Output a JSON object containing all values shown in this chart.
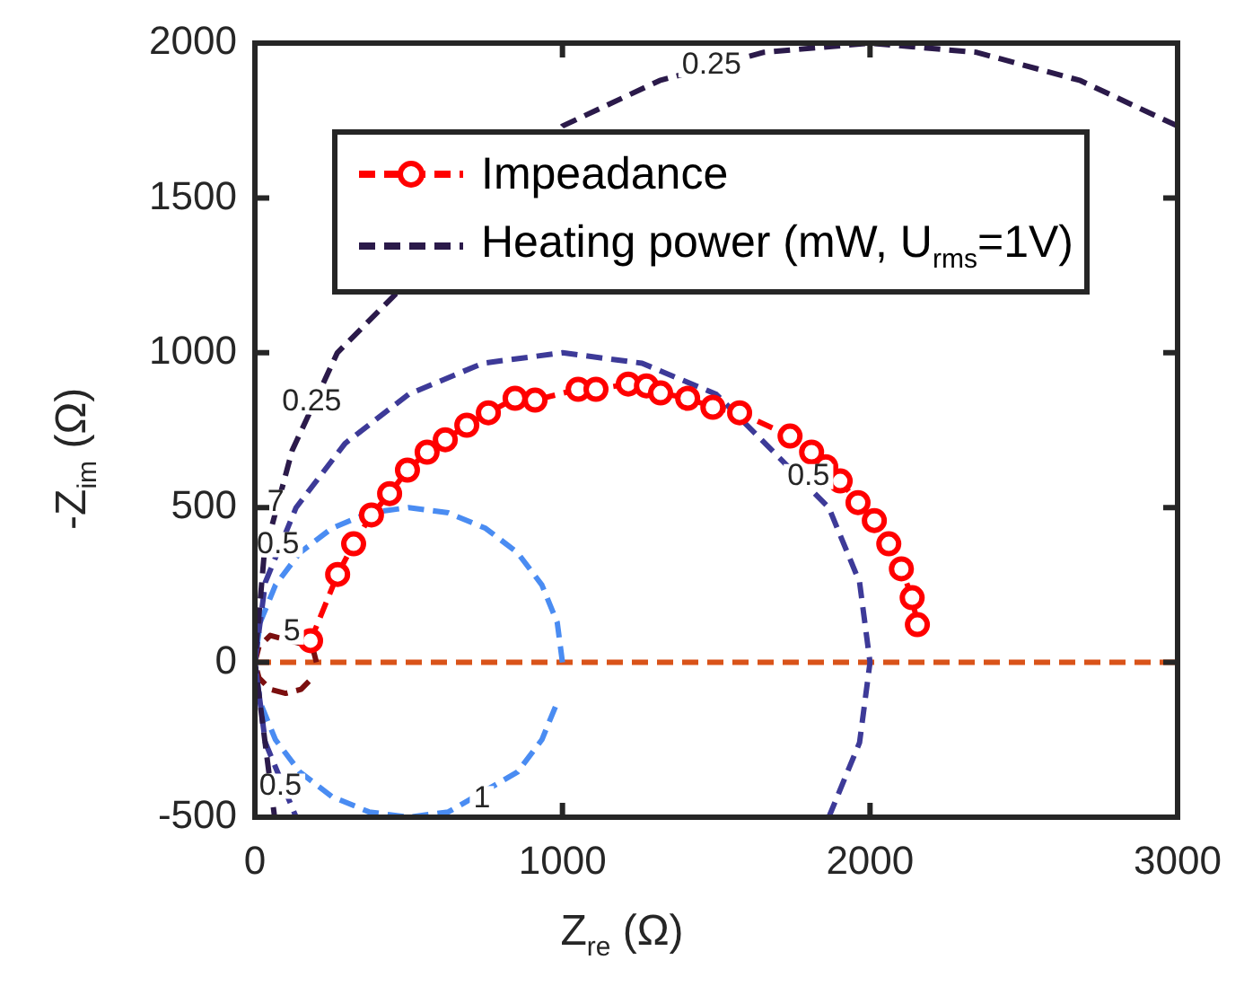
{
  "chart_data": {
    "type": "line",
    "xlabel": "Z$_{re}$ (Ω)",
    "ylabel": "-Z$_{im}$ (Ω)",
    "xlim": [
      0,
      3000
    ],
    "xticks": [
      0,
      1000,
      2000,
      3000
    ],
    "ylim": [
      -500,
      2000
    ],
    "yticks": [
      -500,
      0,
      500,
      1000,
      1500,
      2000
    ],
    "grid": false,
    "legend": "top",
    "series": [
      {
        "name": "Impeadance",
        "color": "#ff0000",
        "marker": "circle",
        "line_style": "dashed",
        "x": [
          181,
          269,
          321,
          379,
          438,
          496,
          560,
          619,
          689,
          759,
          846,
          911,
          1051,
          1109,
          1214,
          1273,
          1319,
          1407,
          1489,
          1576,
          1740,
          1810,
          1856,
          1903,
          1961,
          2014,
          2061,
          2102,
          2137,
          2154
        ],
        "values": [
          70,
          284,
          383,
          476,
          545,
          621,
          679,
          719,
          766,
          806,
          853,
          847,
          882,
          882,
          899,
          893,
          870,
          853,
          824,
          806,
          731,
          679,
          632,
          586,
          516,
          458,
          383,
          302,
          209,
          122
        ]
      },
      {
        "name": "Heating power (mW, U$_{rms}$=1V)",
        "color": "#2b1a4a",
        "marker": "none",
        "line_style": "dashed",
        "x": [
          3000,
          2684,
          2347,
          2000,
          1653,
          1316,
          1000,
          714,
          468,
          268,
          121,
          30,
          0,
          30,
          64
        ],
        "values": [
          1732,
          1879,
          1970,
          2000,
          1970,
          1879,
          1732,
          null,
          null,
          1000,
          684,
          347,
          0,
          null,
          -500
        ]
      },
      {
        "color": "#3d3a98",
        "marker": "none",
        "line_style": "dashed",
        "x": [
          1866,
          1966,
          2000,
          1966,
          1866,
          1707,
          1500,
          1259,
          1000,
          741,
          500,
          293,
          134,
          34,
          0,
          34,
          134
        ],
        "values": [
          -500,
          -259,
          0,
          259,
          500,
          null,
          866,
          966,
          1000,
          966,
          866,
          707,
          500,
          259,
          0,
          -259,
          -500
        ]
      },
      {
        "color": "#4a8cf2",
        "marker": "none",
        "line_style": "dashed",
        "x": [
          1000,
          983,
          933,
          854,
          750,
          629,
          500,
          371,
          250,
          146,
          67,
          17,
          0,
          17,
          67,
          146,
          250,
          371,
          500,
          629,
          750,
          854,
          933,
          983
        ],
        "values": [
          0,
          129,
          250,
          354,
          433,
          483,
          500,
          483,
          433,
          354,
          250,
          129,
          0,
          -129,
          -250,
          -354,
          -433,
          -483,
          -500,
          -483,
          null,
          -354,
          -250,
          -129
        ]
      },
      {
        "color": "#7b0f0f",
        "marker": "none",
        "line_style": "dashed",
        "x": [
          200,
          187,
          150,
          100,
          50,
          13,
          0,
          13,
          50,
          100,
          150,
          187
        ],
        "values": [
          0,
          50,
          null,
          null,
          87,
          50,
          0,
          -50,
          -87,
          -100,
          -87,
          -50
        ]
      }
    ],
    "ref_lines": [
      {
        "axis": "y",
        "value": 0,
        "color": "#d95319",
        "line_style": "dashed"
      }
    ],
    "annotations": [
      {
        "text": "0.25",
        "x": 1485,
        "y": 1930
      },
      {
        "text": "0.5",
        "x": 1800,
        "y": 600
      },
      {
        "text": "1",
        "x": 738,
        "y": -440
      },
      {
        "text": "5",
        "x": 120,
        "y": 98
      },
      {
        "text": "7",
        "x": 68,
        "y": 516
      },
      {
        "text": "0.5",
        "x": 75,
        "y": 380
      },
      {
        "text": "0.25",
        "x": 185,
        "y": 841
      },
      {
        "text": "0.5",
        "x": 83,
        "y": -400
      }
    ]
  }
}
